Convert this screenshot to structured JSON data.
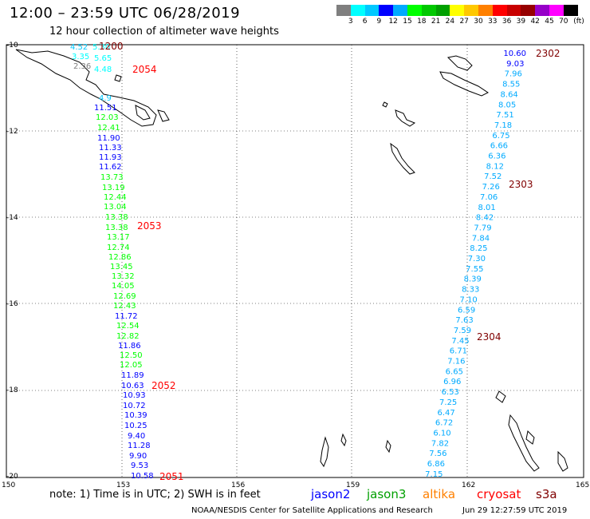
{
  "title": "12:00 – 23:59 UTC 06/28/2019",
  "subtitle": "12 hour collection of altimeter wave heights",
  "color_scale": {
    "labels": [
      "3",
      "6",
      "9",
      "12",
      "15",
      "18",
      "21",
      "24",
      "27",
      "30",
      "33",
      "36",
      "39",
      "42",
      "45",
      "70"
    ],
    "unit": "(ft)",
    "colors": [
      "#7f7f7f",
      "#00ffff",
      "#00c8ff",
      "#0000ff",
      "#00aaff",
      "#00ff00",
      "#00c800",
      "#00a000",
      "#ffff00",
      "#ffc800",
      "#ff8000",
      "#ff0000",
      "#c80000",
      "#960000",
      "#9600c8",
      "#ff00ff",
      "#000000"
    ]
  },
  "axes": {
    "x_ticks": [
      "150",
      "153",
      "156",
      "159",
      "162",
      "165"
    ],
    "y_ticks": [
      "-10",
      "-12",
      "-14",
      "-16",
      "-18",
      "-20"
    ]
  },
  "track_left": {
    "times": [
      {
        "label": "1200",
        "color": "#800000"
      },
      {
        "label": "2054",
        "color": "#ff0000"
      },
      {
        "label": "2053",
        "color": "#ff0000"
      },
      {
        "label": "2052",
        "color": "#ff0000"
      },
      {
        "label": "2051",
        "color": "#ff0000"
      }
    ],
    "points": [
      {
        "v": "4.52",
        "c": "#00c8ff"
      },
      {
        "v": "5.30",
        "c": "#00ffff"
      },
      {
        "v": "3.35",
        "c": "#00ffff"
      },
      {
        "v": "5.65",
        "c": "#00ffff"
      },
      {
        "v": "2.36",
        "c": "#7f7f7f"
      },
      {
        "v": "4.48",
        "c": "#00ffff"
      },
      {
        "v": "4.9",
        "c": "#00c8ff"
      },
      {
        "v": "11.51",
        "c": "#0000ff"
      },
      {
        "v": "12.03",
        "c": "#00ff00"
      },
      {
        "v": "12.41",
        "c": "#00ff00"
      },
      {
        "v": "11.90",
        "c": "#0000ff"
      },
      {
        "v": "11.33",
        "c": "#0000ff"
      },
      {
        "v": "11.93",
        "c": "#0000ff"
      },
      {
        "v": "11.62",
        "c": "#0000ff"
      },
      {
        "v": "13.73",
        "c": "#00ff00"
      },
      {
        "v": "13.19",
        "c": "#00ff00"
      },
      {
        "v": "12.44",
        "c": "#00ff00"
      },
      {
        "v": "13.04",
        "c": "#00ff00"
      },
      {
        "v": "13.38",
        "c": "#00ff00"
      },
      {
        "v": "13.38",
        "c": "#00ff00"
      },
      {
        "v": "13.17",
        "c": "#00ff00"
      },
      {
        "v": "12.74",
        "c": "#00ff00"
      },
      {
        "v": "12.86",
        "c": "#00ff00"
      },
      {
        "v": "13.45",
        "c": "#00ff00"
      },
      {
        "v": "13.32",
        "c": "#00ff00"
      },
      {
        "v": "14.05",
        "c": "#00ff00"
      },
      {
        "v": "12.69",
        "c": "#00ff00"
      },
      {
        "v": "12.43",
        "c": "#00ff00"
      },
      {
        "v": "11.72",
        "c": "#0000ff"
      },
      {
        "v": "12.54",
        "c": "#00ff00"
      },
      {
        "v": "12.82",
        "c": "#00ff00"
      },
      {
        "v": "11.86",
        "c": "#0000ff"
      },
      {
        "v": "12.50",
        "c": "#00ff00"
      },
      {
        "v": "12.05",
        "c": "#00ff00"
      },
      {
        "v": "11.89",
        "c": "#0000ff"
      },
      {
        "v": "10.63",
        "c": "#0000ff"
      },
      {
        "v": "10.93",
        "c": "#0000ff"
      },
      {
        "v": "10.72",
        "c": "#0000ff"
      },
      {
        "v": "10.39",
        "c": "#0000ff"
      },
      {
        "v": "10.25",
        "c": "#0000ff"
      },
      {
        "v": "9.40",
        "c": "#0000ff"
      },
      {
        "v": "11.28",
        "c": "#0000ff"
      },
      {
        "v": "9.90",
        "c": "#0000ff"
      },
      {
        "v": "9.53",
        "c": "#0000ff"
      },
      {
        "v": "10.58",
        "c": "#0000ff"
      }
    ]
  },
  "track_right": {
    "times": [
      {
        "label": "2302",
        "color": "#800000"
      },
      {
        "label": "2303",
        "color": "#800000"
      },
      {
        "label": "2304",
        "color": "#800000"
      }
    ],
    "points": [
      {
        "v": "10.60",
        "c": "#0000ff"
      },
      {
        "v": "9.03",
        "c": "#0000ff"
      },
      {
        "v": "7.96",
        "c": "#00aaff"
      },
      {
        "v": "8.55",
        "c": "#00aaff"
      },
      {
        "v": "8.64",
        "c": "#00aaff"
      },
      {
        "v": "8.05",
        "c": "#00aaff"
      },
      {
        "v": "7.51",
        "c": "#00aaff"
      },
      {
        "v": "7.18",
        "c": "#00aaff"
      },
      {
        "v": "6.75",
        "c": "#00aaff"
      },
      {
        "v": "6.66",
        "c": "#00aaff"
      },
      {
        "v": "6.36",
        "c": "#00aaff"
      },
      {
        "v": "8.12",
        "c": "#00aaff"
      },
      {
        "v": "7.52",
        "c": "#00aaff"
      },
      {
        "v": "7.26",
        "c": "#00aaff"
      },
      {
        "v": "7.06",
        "c": "#00aaff"
      },
      {
        "v": "8.01",
        "c": "#00aaff"
      },
      {
        "v": "8.42",
        "c": "#00aaff"
      },
      {
        "v": "7.79",
        "c": "#00aaff"
      },
      {
        "v": "7.84",
        "c": "#00aaff"
      },
      {
        "v": "8.25",
        "c": "#00aaff"
      },
      {
        "v": "7.30",
        "c": "#00aaff"
      },
      {
        "v": "7.55",
        "c": "#00aaff"
      },
      {
        "v": "8.39",
        "c": "#00aaff"
      },
      {
        "v": "8.33",
        "c": "#00aaff"
      },
      {
        "v": "7.10",
        "c": "#00aaff"
      },
      {
        "v": "6.59",
        "c": "#00aaff"
      },
      {
        "v": "7.63",
        "c": "#00aaff"
      },
      {
        "v": "7.59",
        "c": "#00aaff"
      },
      {
        "v": "7.45",
        "c": "#00aaff"
      },
      {
        "v": "6.71",
        "c": "#00aaff"
      },
      {
        "v": "7.16",
        "c": "#00aaff"
      },
      {
        "v": "6.65",
        "c": "#00aaff"
      },
      {
        "v": "6.96",
        "c": "#00aaff"
      },
      {
        "v": "6.53",
        "c": "#00aaff"
      },
      {
        "v": "7.25",
        "c": "#00aaff"
      },
      {
        "v": "6.47",
        "c": "#00aaff"
      },
      {
        "v": "6.72",
        "c": "#00aaff"
      },
      {
        "v": "6.10",
        "c": "#00aaff"
      },
      {
        "v": "7.82",
        "c": "#00aaff"
      },
      {
        "v": "7.56",
        "c": "#00aaff"
      },
      {
        "v": "6.86",
        "c": "#00aaff"
      },
      {
        "v": "7.15",
        "c": "#00aaff"
      }
    ]
  },
  "note": "note: 1) Time is in UTC; 2) SWH is in feet",
  "satellites": [
    {
      "name": "jason2",
      "color": "#0000ff"
    },
    {
      "name": "jason3",
      "color": "#00a000"
    },
    {
      "name": "altika",
      "color": "#ff8000"
    },
    {
      "name": "cryosat",
      "color": "#ff0000"
    },
    {
      "name": "s3a",
      "color": "#800000"
    }
  ],
  "footer_left": "NOAA/NESDIS Center for Satellite Applications and Research",
  "footer_right": "Jun 29 12:27:59 UTC 2019"
}
